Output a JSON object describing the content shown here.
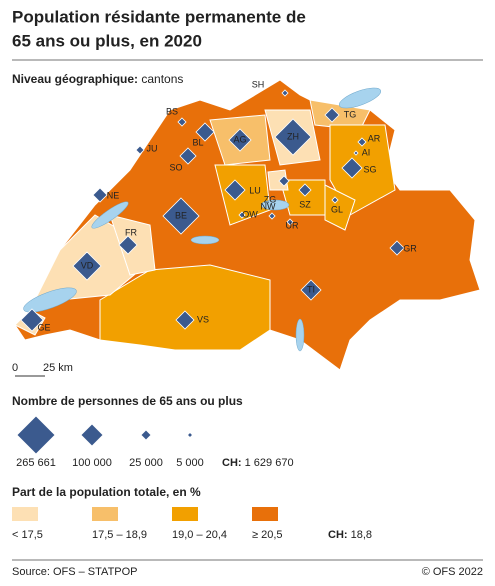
{
  "header": {
    "title_line1": "Population résidante permanente de",
    "title_line2": "65 ans ou plus, en 2020"
  },
  "level": {
    "label": "Niveau géographique:",
    "value": "cantons"
  },
  "map": {
    "scale": {
      "start": "0",
      "end": "25 km"
    },
    "cantons": [
      {
        "label": "SH"
      },
      {
        "label": "BS"
      },
      {
        "label": "ZH"
      },
      {
        "label": "TG"
      },
      {
        "label": "AG"
      },
      {
        "label": "BL"
      },
      {
        "label": "JU"
      },
      {
        "label": "AR"
      },
      {
        "label": "AI"
      },
      {
        "label": "SO"
      },
      {
        "label": "SG"
      },
      {
        "label": "LU"
      },
      {
        "label": "ZG"
      },
      {
        "label": "NE"
      },
      {
        "label": "BE"
      },
      {
        "label": "OW"
      },
      {
        "label": "NW"
      },
      {
        "label": "SZ"
      },
      {
        "label": "GL"
      },
      {
        "label": "UR"
      },
      {
        "label": "FR"
      },
      {
        "label": "GR"
      },
      {
        "label": "VD"
      },
      {
        "label": "TI"
      },
      {
        "label": "VS"
      },
      {
        "label": "GE"
      }
    ]
  },
  "size_legend": {
    "title": "Nombre de personnes de 65 ans ou plus",
    "items": [
      "265 661",
      "100 000",
      "25 000",
      "5 000"
    ],
    "total_label": "CH:",
    "total_value": "1 629 670"
  },
  "share_legend": {
    "title": "Part de la population totale, en %",
    "classes": [
      {
        "label": "< 17,5",
        "color": "#fde0b4"
      },
      {
        "label": "17,5 – 18,9",
        "color": "#f7bf6a"
      },
      {
        "label": "19,0 – 20,4",
        "color": "#f2a000"
      },
      {
        "label": "≥ 20,5",
        "color": "#e8700a"
      }
    ],
    "total_label": "CH:",
    "total_value": "18,8"
  },
  "footer": {
    "source": "Source: OFS – STATPOP",
    "copyright": "© OFS 2022"
  }
}
